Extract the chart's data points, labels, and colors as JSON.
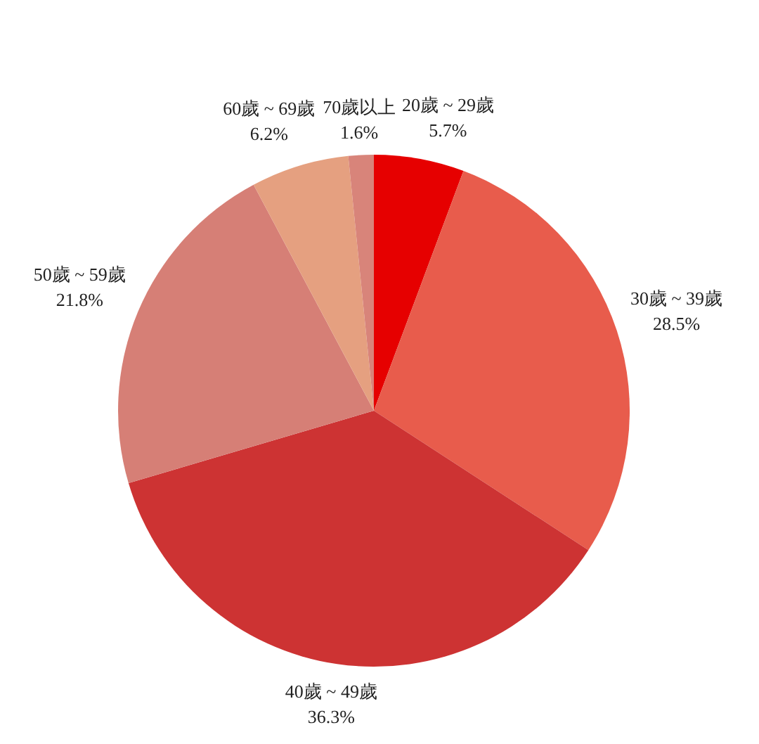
{
  "chart_data": {
    "type": "pie",
    "categories": [
      "20歲 ~ 29歲",
      "30歲 ~ 39歲",
      "40歲 ~ 49歲",
      "50歲 ~ 59歲",
      "60歲 ~ 69歲",
      "70歲以上"
    ],
    "values": [
      5.7,
      28.5,
      36.3,
      21.8,
      6.2,
      1.6
    ],
    "colors": [
      "#e60000",
      "#e85c4c",
      "#cd3333",
      "#d67f76",
      "#e5a080",
      "#d8847a"
    ],
    "value_labels": [
      "5.7%",
      "28.5%",
      "36.3%",
      "21.8%",
      "6.2%",
      "1.6%"
    ],
    "legend": false
  }
}
